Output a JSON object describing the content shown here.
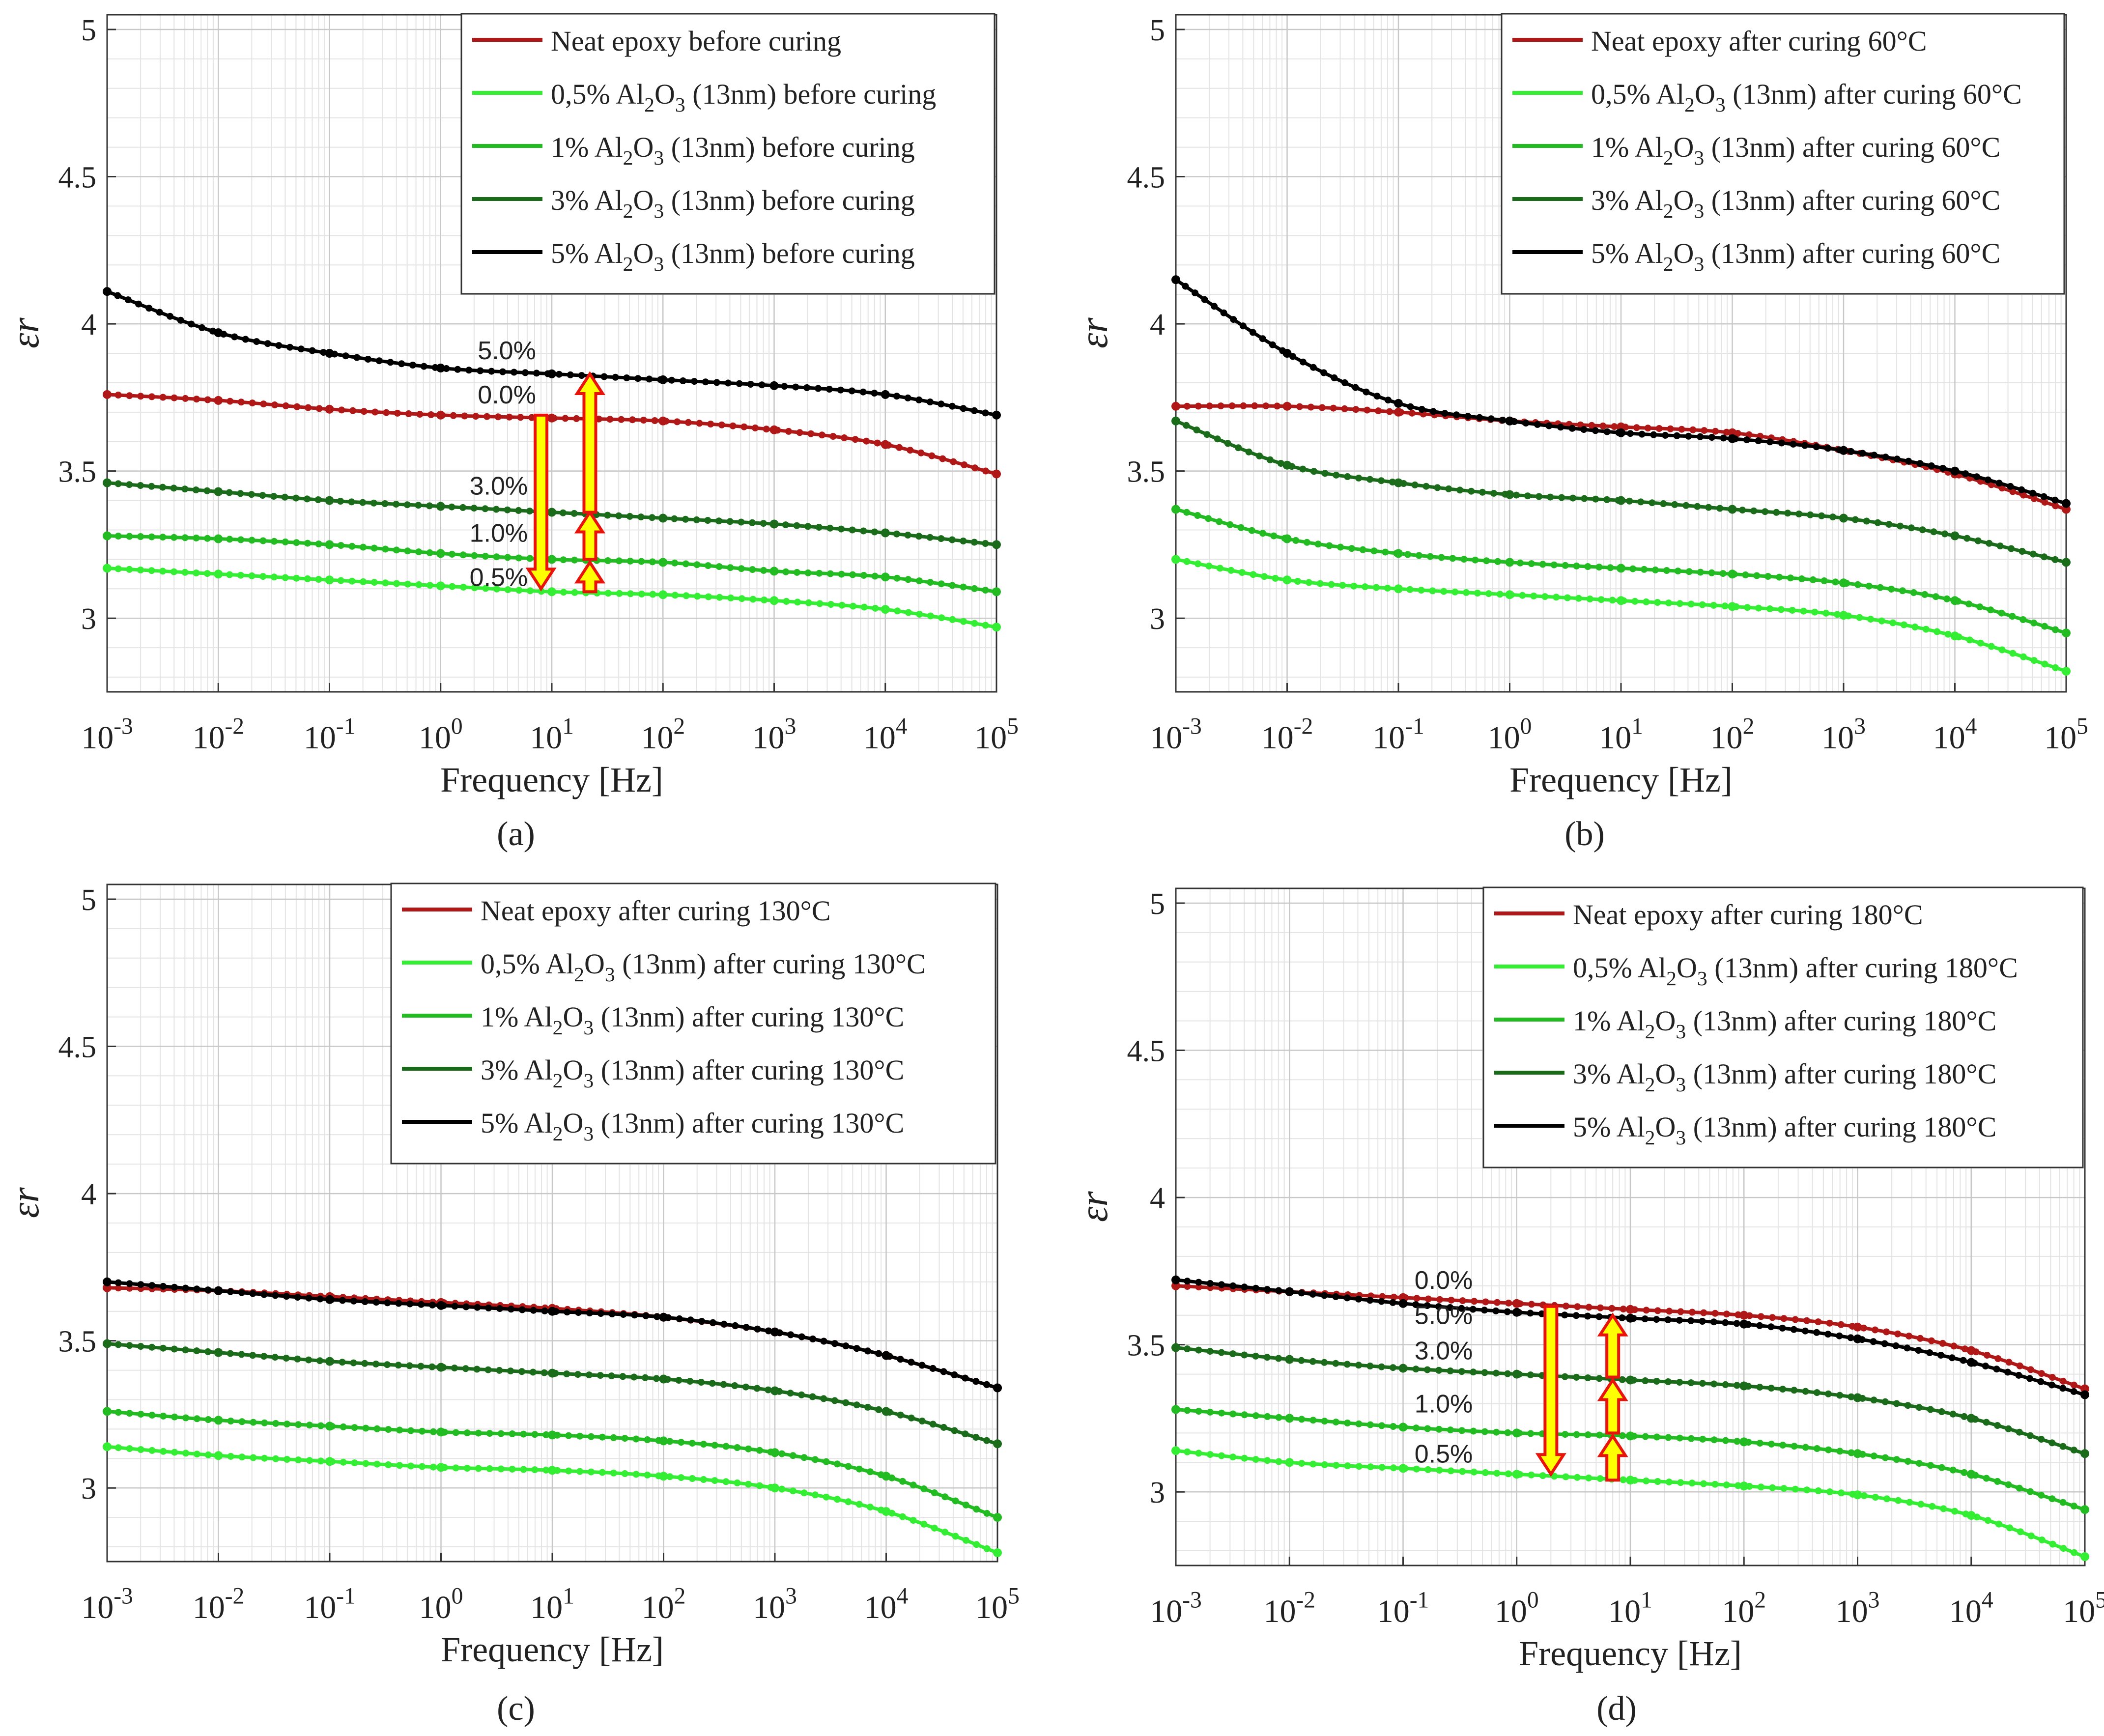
{
  "chart_data": [
    {
      "panel": "a",
      "caption": "(a)",
      "type": "line",
      "x_scale": "log",
      "xlim": [
        0.001,
        100000
      ],
      "ylim": [
        2.75,
        5.05
      ],
      "xlabel": "Frequency [Hz]",
      "ylabel": "εr",
      "grid": true,
      "legend_position": "top-right",
      "x_ticks": [
        "10-3",
        "10-2",
        "10-1",
        "100",
        "101",
        "102",
        "103",
        "104",
        "105"
      ],
      "y_ticks": [
        "3",
        "3.5",
        "4",
        "4.5",
        "5"
      ],
      "x": [
        0.001,
        0.01,
        0.1,
        1,
        10,
        100,
        1000,
        10000,
        100000
      ],
      "series": [
        {
          "name": "Neat epoxy before curing",
          "color": "#b01818",
          "values": [
            3.76,
            3.74,
            3.71,
            3.69,
            3.68,
            3.67,
            3.64,
            3.59,
            3.49
          ]
        },
        {
          "name": "0,5% Al2O3 (13nm) before curing",
          "color": "#33ee33",
          "values": [
            3.17,
            3.15,
            3.13,
            3.11,
            3.09,
            3.08,
            3.06,
            3.03,
            2.97
          ]
        },
        {
          "name": "1% Al2O3 (13nm) before curing",
          "color": "#22bb22",
          "values": [
            3.28,
            3.27,
            3.25,
            3.22,
            3.2,
            3.19,
            3.16,
            3.14,
            3.09
          ]
        },
        {
          "name": "3% Al2O3 (13nm) before curing",
          "color": "#1a6b1a",
          "values": [
            3.46,
            3.43,
            3.4,
            3.38,
            3.36,
            3.34,
            3.32,
            3.29,
            3.25
          ]
        },
        {
          "name": "5% Al2O3 (13nm) before curing",
          "color": "#000000",
          "values": [
            4.11,
            3.97,
            3.9,
            3.85,
            3.83,
            3.81,
            3.79,
            3.76,
            3.69
          ]
        }
      ],
      "annotations": [
        "5.0%",
        "0.0%",
        "3.0%",
        "1.0%",
        "0.5%"
      ]
    },
    {
      "panel": "b",
      "caption": "(b)",
      "type": "line",
      "x_scale": "log",
      "xlim": [
        0.001,
        100000
      ],
      "ylim": [
        2.75,
        5.05
      ],
      "xlabel": "Frequency [Hz]",
      "ylabel": "εr",
      "grid": true,
      "legend_position": "top-right",
      "x_ticks": [
        "10-3",
        "10-2",
        "10-1",
        "100",
        "101",
        "102",
        "103",
        "104",
        "105"
      ],
      "y_ticks": [
        "3",
        "3.5",
        "4",
        "4.5",
        "5"
      ],
      "x": [
        0.001,
        0.01,
        0.1,
        1,
        10,
        100,
        1000,
        10000,
        100000
      ],
      "series": [
        {
          "name": "Neat epoxy after curing 60°C",
          "color": "#b01818",
          "values": [
            3.72,
            3.72,
            3.7,
            3.67,
            3.65,
            3.63,
            3.57,
            3.49,
            3.37
          ]
        },
        {
          "name": "0,5% Al2O3 (13nm) after curing 60°C",
          "color": "#33ee33",
          "values": [
            3.2,
            3.13,
            3.1,
            3.08,
            3.06,
            3.04,
            3.01,
            2.94,
            2.82
          ]
        },
        {
          "name": "1% Al2O3 (13nm) after curing 60°C",
          "color": "#22bb22",
          "values": [
            3.37,
            3.27,
            3.22,
            3.19,
            3.17,
            3.15,
            3.12,
            3.06,
            2.95
          ]
        },
        {
          "name": "3% Al2O3 (13nm) after curing 60°C",
          "color": "#1a6b1a",
          "values": [
            3.67,
            3.52,
            3.46,
            3.42,
            3.4,
            3.37,
            3.34,
            3.28,
            3.19
          ]
        },
        {
          "name": "5% Al2O3 (13nm) after curing 60°C",
          "color": "#000000",
          "values": [
            4.15,
            3.9,
            3.73,
            3.67,
            3.63,
            3.61,
            3.57,
            3.5,
            3.39
          ]
        }
      ]
    },
    {
      "panel": "c",
      "caption": "(c)",
      "type": "line",
      "x_scale": "log",
      "xlim": [
        0.001,
        100000
      ],
      "ylim": [
        2.75,
        5.05
      ],
      "xlabel": "Frequency [Hz]",
      "ylabel": "εr",
      "grid": true,
      "legend_position": "top-right",
      "x_ticks": [
        "10-3",
        "10-2",
        "10-1",
        "100",
        "101",
        "102",
        "103",
        "104",
        "105"
      ],
      "y_ticks": [
        "3",
        "3.5",
        "4",
        "4.5",
        "5"
      ],
      "x": [
        0.001,
        0.01,
        0.1,
        1,
        10,
        100,
        1000,
        10000,
        100000
      ],
      "series": [
        {
          "name": "Neat epoxy after curing 130°C",
          "color": "#b01818",
          "values": [
            3.68,
            3.67,
            3.65,
            3.63,
            3.61,
            3.58,
            3.53,
            3.45,
            3.34
          ]
        },
        {
          "name": "0,5% Al2O3 (13nm) after curing 130°C",
          "color": "#33ee33",
          "values": [
            3.14,
            3.11,
            3.09,
            3.07,
            3.06,
            3.04,
            3.0,
            2.92,
            2.78
          ]
        },
        {
          "name": "1% Al2O3 (13nm) after curing 130°C",
          "color": "#22bb22",
          "values": [
            3.26,
            3.23,
            3.21,
            3.19,
            3.18,
            3.16,
            3.12,
            3.04,
            2.9
          ]
        },
        {
          "name": "3% Al2O3 (13nm) after curing 130°C",
          "color": "#1a6b1a",
          "values": [
            3.49,
            3.46,
            3.43,
            3.41,
            3.39,
            3.37,
            3.33,
            3.26,
            3.15
          ]
        },
        {
          "name": "5% Al2O3 (13nm) after curing 130°C",
          "color": "#000000",
          "values": [
            3.7,
            3.67,
            3.64,
            3.62,
            3.6,
            3.58,
            3.53,
            3.45,
            3.34
          ]
        }
      ]
    },
    {
      "panel": "d",
      "caption": "(d)",
      "type": "line",
      "x_scale": "log",
      "xlim": [
        0.001,
        100000
      ],
      "ylim": [
        2.75,
        5.05
      ],
      "xlabel": "Frequency [Hz]",
      "ylabel": "εr",
      "grid": true,
      "legend_position": "top-right",
      "x_ticks": [
        "10-3",
        "10-2",
        "10-1",
        "100",
        "101",
        "102",
        "103",
        "104",
        "105"
      ],
      "y_ticks": [
        "3",
        "3.5",
        "4",
        "4.5",
        "5"
      ],
      "x": [
        0.001,
        0.01,
        0.1,
        1,
        10,
        100,
        1000,
        10000,
        100000
      ],
      "series": [
        {
          "name": "Neat epoxy after curing 180°C",
          "color": "#b01818",
          "values": [
            3.7,
            3.68,
            3.66,
            3.64,
            3.62,
            3.6,
            3.56,
            3.48,
            3.35
          ]
        },
        {
          "name": "0,5% Al2O3 (13nm) after curing 180°C",
          "color": "#33ee33",
          "values": [
            3.14,
            3.1,
            3.08,
            3.06,
            3.04,
            3.02,
            2.99,
            2.92,
            2.78
          ]
        },
        {
          "name": "1% Al2O3 (13nm) after curing 180°C",
          "color": "#22bb22",
          "values": [
            3.28,
            3.25,
            3.22,
            3.2,
            3.19,
            3.17,
            3.13,
            3.06,
            2.94
          ]
        },
        {
          "name": "3% Al2O3 (13nm) after curing 180°C",
          "color": "#1a6b1a",
          "values": [
            3.49,
            3.45,
            3.42,
            3.4,
            3.38,
            3.36,
            3.32,
            3.25,
            3.13
          ]
        },
        {
          "name": "5% Al2O3 (13nm) after curing 180°C",
          "color": "#000000",
          "values": [
            3.72,
            3.68,
            3.64,
            3.61,
            3.59,
            3.57,
            3.52,
            3.44,
            3.33
          ]
        }
      ],
      "annotations": [
        "0.0%",
        "5.0%",
        "3.0%",
        "1.0%",
        "0.5%"
      ]
    }
  ]
}
